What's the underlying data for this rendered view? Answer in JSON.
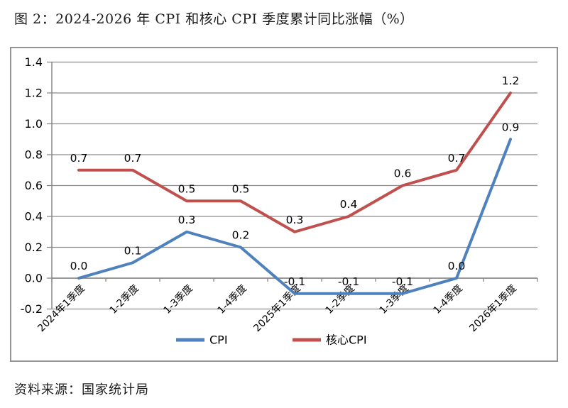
{
  "title": "图 2：2024-2026 年 CPI 和核心 CPI 季度累计同比涨幅（%）",
  "source": "资料来源：国家统计局",
  "colors": {
    "cpi_line": "#4F81BD",
    "core_cpi_line": "#C0504D",
    "gridline": "#8C8C8C",
    "axis": "#7F7F7F",
    "label_text": "#000000",
    "chart_border": "#949494"
  },
  "chart_data": {
    "type": "line",
    "title": "图 2：2024-2026 年 CPI 和核心 CPI 季度累计同比涨幅（%）",
    "categories": [
      "2024年1季度",
      "1-2季度",
      "1-3季度",
      "1-4季度",
      "2025年1季度",
      "1-2季度",
      "1-3季度",
      "1-4季度",
      "2026年1季度"
    ],
    "series": [
      {
        "id": "cpi",
        "name": "CPI",
        "color": "#4F81BD",
        "values": [
          0.0,
          0.1,
          0.3,
          0.2,
          -0.1,
          -0.1,
          -0.1,
          0.0,
          0.9
        ]
      },
      {
        "id": "core-cpi",
        "name": "核心CPI",
        "color": "#C0504D",
        "values": [
          0.7,
          0.7,
          0.5,
          0.5,
          0.3,
          0.4,
          0.6,
          0.7,
          1.2
        ]
      }
    ],
    "ylim": [
      -0.2,
      1.4
    ],
    "ytick_step": 0.2,
    "ytick_labels": [
      "-0.2",
      "0.0",
      "0.2",
      "0.4",
      "0.6",
      "0.8",
      "1.0",
      "1.2",
      "1.4"
    ],
    "xlabel": "",
    "ylabel": "",
    "grid": true,
    "data_labels": true,
    "legend_position": "bottom",
    "x_label_rotation": -45
  }
}
